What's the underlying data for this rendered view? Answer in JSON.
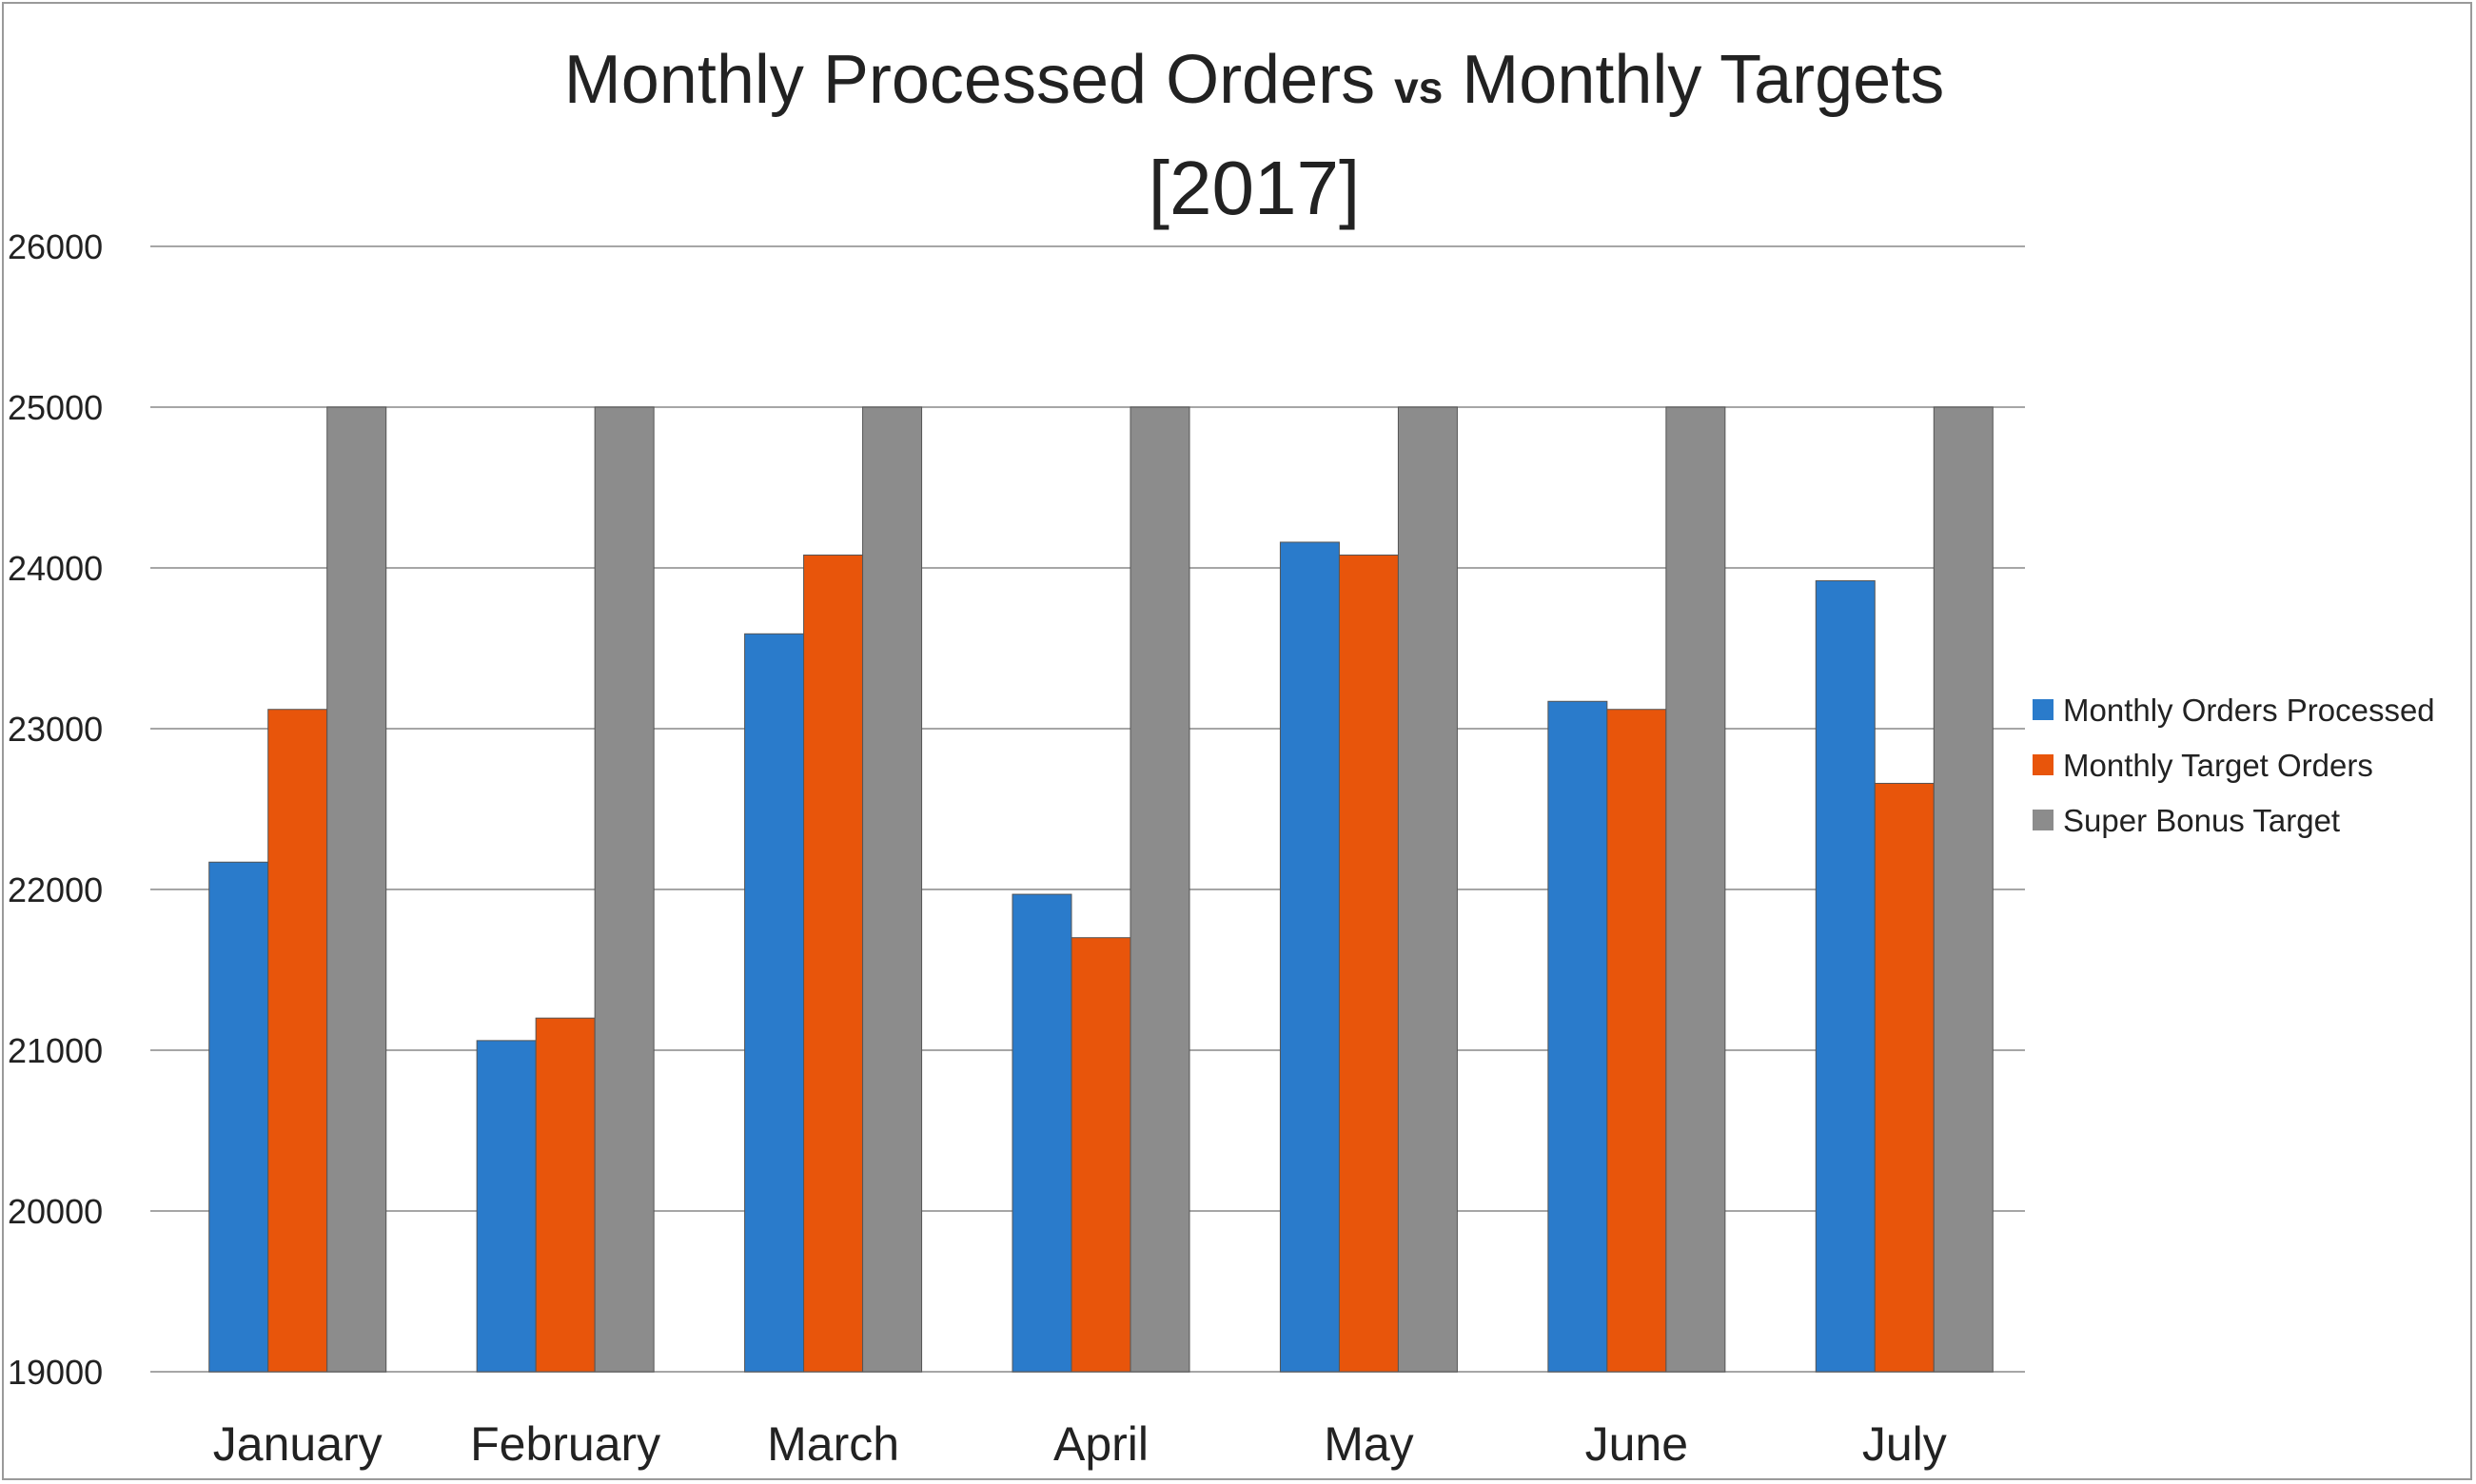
{
  "chart_data": {
    "type": "bar",
    "title_parts": [
      "Monthly Processed Orders ",
      "vs",
      " Monthly Targets"
    ],
    "subtitle": "[2017]",
    "categories": [
      "January",
      "February",
      "March",
      "April",
      "May",
      "June",
      "July"
    ],
    "series": [
      {
        "name": "Monthly Orders Processed",
        "color": "#2a7bcb",
        "values": [
          22170,
          21060,
          23590,
          21970,
          24160,
          23170,
          23920
        ]
      },
      {
        "name": "Monthly Target Orders",
        "color": "#e8550b",
        "values": [
          23120,
          21200,
          24080,
          21700,
          24080,
          23120,
          22660
        ]
      },
      {
        "name": "Super Bonus Target",
        "color": "#8c8c8c",
        "values": [
          25000,
          25000,
          25000,
          25000,
          25000,
          25000,
          25000
        ]
      }
    ],
    "ylim": [
      19000,
      26000
    ],
    "yticks": [
      19000,
      20000,
      21000,
      22000,
      23000,
      24000,
      25000,
      26000
    ],
    "grid": true,
    "legend_position": "right"
  }
}
